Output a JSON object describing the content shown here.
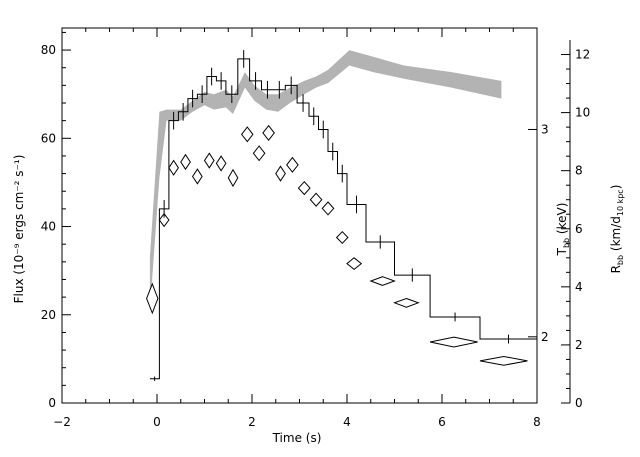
{
  "chart_data": {
    "type": "scatter",
    "xlabel": "Time (s)",
    "ylabel": "Flux (10⁻⁹ ergs cm⁻² s⁻¹)",
    "xlim": [
      -2,
      8
    ],
    "ylim": [
      0,
      85
    ],
    "x_ticks": [
      -2,
      0,
      2,
      4,
      6,
      8
    ],
    "y_ticks": [
      0,
      20,
      40,
      60,
      80
    ],
    "right_axes": [
      {
        "name": "T_bb",
        "label_main": "T",
        "label_sub": "bb",
        "label_rest": " (keV)",
        "ticks": [
          2,
          3
        ],
        "tick_flux": [
          15,
          62
        ]
      },
      {
        "name": "R_bb",
        "label_main": "R",
        "label_sub": "bb",
        "label_rest": " (km/d",
        "label_sub2": "10 kpc",
        "label_end": ")",
        "ylim": [
          0,
          12.5
        ],
        "ticks": [
          0,
          2,
          4,
          6,
          8,
          10,
          12
        ]
      }
    ],
    "series": [
      {
        "kind": "step",
        "points": [
          {
            "x0": -0.15,
            "x1": 0.05,
            "y": 5.5,
            "err": 0.5
          },
          {
            "x0": 0.05,
            "x1": 0.25,
            "y": 44,
            "err": 2
          },
          {
            "x0": 0.25,
            "x1": 0.45,
            "y": 64,
            "err": 2
          },
          {
            "x0": 0.45,
            "x1": 0.65,
            "y": 66,
            "err": 2
          },
          {
            "x0": 0.65,
            "x1": 0.85,
            "y": 69,
            "err": 2
          },
          {
            "x0": 0.85,
            "x1": 1.05,
            "y": 70,
            "err": 2
          },
          {
            "x0": 1.05,
            "x1": 1.25,
            "y": 74,
            "err": 2
          },
          {
            "x0": 1.25,
            "x1": 1.45,
            "y": 73,
            "err": 2
          },
          {
            "x0": 1.45,
            "x1": 1.7,
            "y": 70,
            "err": 2
          },
          {
            "x0": 1.7,
            "x1": 1.95,
            "y": 78,
            "err": 2
          },
          {
            "x0": 1.95,
            "x1": 2.2,
            "y": 73,
            "err": 2
          },
          {
            "x0": 2.2,
            "x1": 2.45,
            "y": 71,
            "err": 2
          },
          {
            "x0": 2.45,
            "x1": 2.7,
            "y": 71,
            "err": 2
          },
          {
            "x0": 2.7,
            "x1": 2.95,
            "y": 72,
            "err": 2
          },
          {
            "x0": 2.95,
            "x1": 3.2,
            "y": 68,
            "err": 2
          },
          {
            "x0": 3.2,
            "x1": 3.4,
            "y": 65,
            "err": 2
          },
          {
            "x0": 3.4,
            "x1": 3.6,
            "y": 62,
            "err": 2
          },
          {
            "x0": 3.6,
            "x1": 3.8,
            "y": 57,
            "err": 2
          },
          {
            "x0": 3.8,
            "x1": 4.0,
            "y": 52,
            "err": 2
          },
          {
            "x0": 4.0,
            "x1": 4.4,
            "y": 45,
            "err": 2
          },
          {
            "x0": 4.4,
            "x1": 5.0,
            "y": 36.5,
            "err": 1.5
          },
          {
            "x0": 5.0,
            "x1": 5.75,
            "y": 29,
            "err": 1.5
          },
          {
            "x0": 5.75,
            "x1": 6.8,
            "y": 19.5,
            "err": 1
          },
          {
            "x0": 6.8,
            "x1": 8.0,
            "y": 14.5,
            "err": 1
          }
        ]
      },
      {
        "kind": "band",
        "points": [
          {
            "x": -0.15,
            "lo": 21,
            "hi": 33
          },
          {
            "x": 0.05,
            "lo": 51,
            "hi": 66
          },
          {
            "x": 0.2,
            "lo": 64,
            "hi": 66.5
          },
          {
            "x": 0.5,
            "lo": 64,
            "hi": 66.5
          },
          {
            "x": 0.75,
            "lo": 66,
            "hi": 68.5
          },
          {
            "x": 1.0,
            "lo": 67.5,
            "hi": 70.5
          },
          {
            "x": 1.2,
            "lo": 66.5,
            "hi": 70
          },
          {
            "x": 1.45,
            "lo": 67,
            "hi": 71
          },
          {
            "x": 1.6,
            "lo": 65.5,
            "hi": 69.5
          },
          {
            "x": 1.85,
            "lo": 71.5,
            "hi": 75
          },
          {
            "x": 2.05,
            "lo": 68.5,
            "hi": 72
          },
          {
            "x": 2.3,
            "lo": 66.5,
            "hi": 70
          },
          {
            "x": 2.55,
            "lo": 66,
            "hi": 70
          },
          {
            "x": 2.8,
            "lo": 68,
            "hi": 71.5
          },
          {
            "x": 3.1,
            "lo": 70,
            "hi": 73
          },
          {
            "x": 3.35,
            "lo": 71.5,
            "hi": 74
          },
          {
            "x": 3.6,
            "lo": 72.5,
            "hi": 75.5
          },
          {
            "x": 4.05,
            "lo": 76.5,
            "hi": 80
          },
          {
            "x": 4.55,
            "lo": 75,
            "hi": 78.5
          },
          {
            "x": 5.2,
            "lo": 73.5,
            "hi": 76.5
          },
          {
            "x": 6.2,
            "lo": 71.5,
            "hi": 75
          },
          {
            "x": 7.25,
            "lo": 69,
            "hi": 73
          }
        ]
      },
      {
        "kind": "diamonds",
        "points": [
          {
            "x": -0.1,
            "y": 3.6,
            "dx": 0.12,
            "dy": 0.5
          },
          {
            "x": 0.15,
            "y": 6.3,
            "dx": 0.1,
            "dy": 0.22
          },
          {
            "x": 0.35,
            "y": 8.1,
            "dx": 0.1,
            "dy": 0.25
          },
          {
            "x": 0.6,
            "y": 8.3,
            "dx": 0.1,
            "dy": 0.25
          },
          {
            "x": 0.85,
            "y": 7.8,
            "dx": 0.1,
            "dy": 0.25
          },
          {
            "x": 1.1,
            "y": 8.35,
            "dx": 0.1,
            "dy": 0.25
          },
          {
            "x": 1.35,
            "y": 8.25,
            "dx": 0.1,
            "dy": 0.25
          },
          {
            "x": 1.6,
            "y": 7.75,
            "dx": 0.1,
            "dy": 0.28
          },
          {
            "x": 1.9,
            "y": 9.25,
            "dx": 0.12,
            "dy": 0.25
          },
          {
            "x": 2.15,
            "y": 8.6,
            "dx": 0.12,
            "dy": 0.25
          },
          {
            "x": 2.35,
            "y": 9.3,
            "dx": 0.12,
            "dy": 0.25
          },
          {
            "x": 2.6,
            "y": 7.9,
            "dx": 0.1,
            "dy": 0.25
          },
          {
            "x": 2.85,
            "y": 8.2,
            "dx": 0.12,
            "dy": 0.25
          },
          {
            "x": 3.1,
            "y": 7.4,
            "dx": 0.12,
            "dy": 0.22
          },
          {
            "x": 3.35,
            "y": 7.0,
            "dx": 0.12,
            "dy": 0.22
          },
          {
            "x": 3.6,
            "y": 6.7,
            "dx": 0.12,
            "dy": 0.22
          },
          {
            "x": 3.9,
            "y": 5.7,
            "dx": 0.12,
            "dy": 0.2
          },
          {
            "x": 4.15,
            "y": 4.8,
            "dx": 0.15,
            "dy": 0.2
          },
          {
            "x": 4.75,
            "y": 4.2,
            "dx": 0.25,
            "dy": 0.15
          },
          {
            "x": 5.25,
            "y": 3.45,
            "dx": 0.25,
            "dy": 0.15
          },
          {
            "x": 6.25,
            "y": 2.1,
            "dx": 0.5,
            "dy": 0.17
          },
          {
            "x": 7.3,
            "y": 1.45,
            "dx": 0.5,
            "dy": 0.15
          }
        ]
      }
    ]
  }
}
